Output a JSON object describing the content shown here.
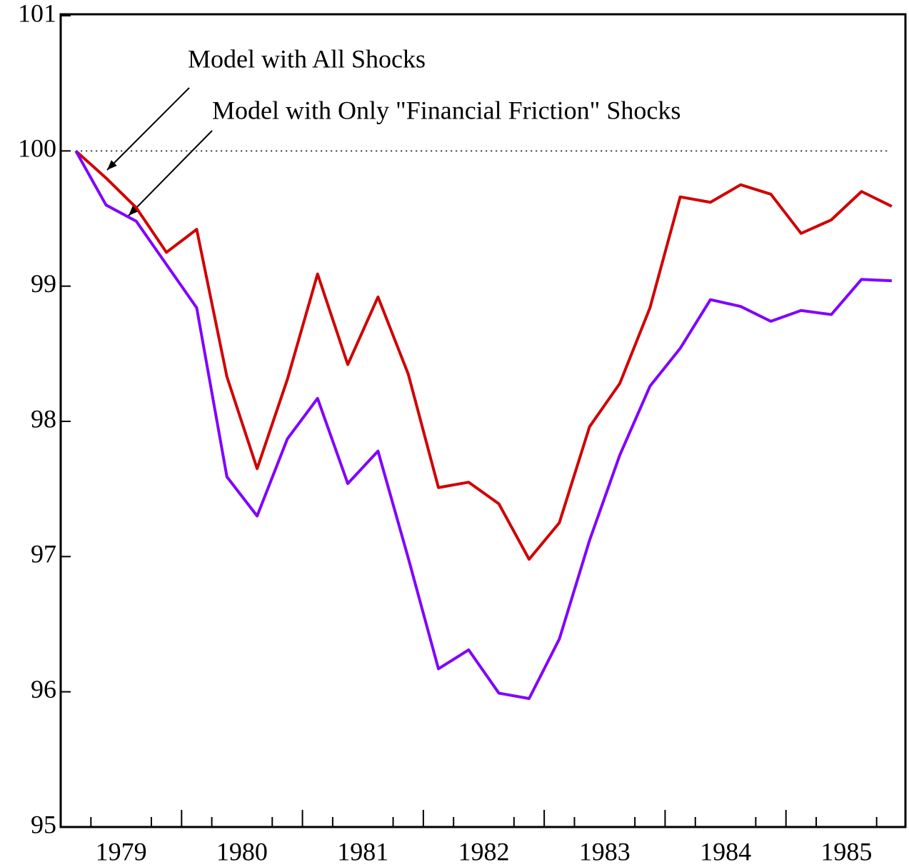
{
  "chart_data": {
    "type": "line",
    "x": [
      1979.125,
      1979.375,
      1979.625,
      1979.875,
      1980.125,
      1980.375,
      1980.625,
      1980.875,
      1981.125,
      1981.375,
      1981.625,
      1981.875,
      1982.125,
      1982.375,
      1982.625,
      1982.875,
      1983.125,
      1983.375,
      1983.625,
      1983.875,
      1984.125,
      1984.375,
      1984.625,
      1984.875,
      1985.125,
      1985.375,
      1985.625,
      1985.875
    ],
    "series": [
      {
        "name": "Model with All Shocks",
        "color": "#d00000",
        "values": [
          100,
          99.8,
          99.58,
          99.25,
          99.42,
          98.33,
          97.65,
          98.31,
          99.09,
          98.42,
          98.92,
          98.35,
          97.51,
          97.55,
          97.39,
          96.98,
          97.25,
          97.96,
          98.28,
          98.84,
          99.66,
          99.62,
          99.75,
          99.68,
          99.39,
          99.49,
          99.7,
          99.59
        ]
      },
      {
        "name": "Model with Only \"Financial Friction\" Shocks",
        "color": "#8000ff",
        "values": [
          100,
          99.6,
          99.48,
          99.16,
          98.84,
          97.59,
          97.3,
          97.87,
          98.17,
          97.54,
          97.78,
          96.99,
          96.17,
          96.31,
          95.99,
          95.95,
          96.39,
          97.12,
          97.75,
          98.26,
          98.54,
          98.9,
          98.85,
          98.74,
          98.82,
          98.79,
          99.05,
          99.04
        ]
      }
    ],
    "xlim": [
      1979,
      1986
    ],
    "xticks": [
      {
        "value": 1979.5,
        "label": "1979"
      },
      {
        "value": 1980.5,
        "label": "1980"
      },
      {
        "value": 1981.5,
        "label": "1981"
      },
      {
        "value": 1982.5,
        "label": "1982"
      },
      {
        "value": 1983.5,
        "label": "1983"
      },
      {
        "value": 1984.5,
        "label": "1984"
      },
      {
        "value": 1985.5,
        "label": "1985"
      }
    ],
    "xtick_marks": [
      1979.25,
      1979.75,
      1980,
      1980.25,
      1980.75,
      1981,
      1981.25,
      1981.75,
      1982,
      1982.25,
      1982.75,
      1983,
      1983.25,
      1983.75,
      1984,
      1984.25,
      1984.75,
      1985,
      1985.25,
      1985.75
    ],
    "ylim": [
      95,
      101
    ],
    "yticks": [
      95,
      96,
      97,
      98,
      99,
      100,
      101
    ],
    "reference_line": 100
  }
}
